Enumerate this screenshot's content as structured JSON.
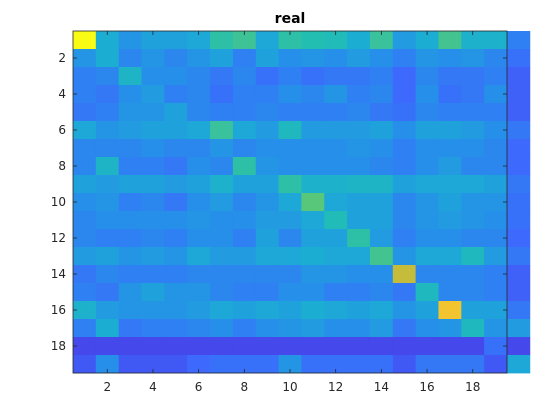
{
  "chart_data": {
    "type": "heatmap",
    "title": "real",
    "xlabel": "",
    "ylabel": "",
    "x_ticks": [
      2,
      4,
      6,
      8,
      10,
      12,
      14,
      16,
      18
    ],
    "y_ticks": [
      2,
      4,
      6,
      8,
      10,
      12,
      14,
      16,
      18
    ],
    "x_range": [
      0.5,
      19.5
    ],
    "y_range": [
      0.5,
      19.5
    ],
    "y_direction": "top-to-bottom",
    "colormap": "parula",
    "color_range": [
      0,
      10
    ],
    "grid": false,
    "legend": "none",
    "values": [
      [
        10,
        4.0,
        3.2,
        3.6,
        3.6,
        3.8,
        5.2,
        5.5,
        3.8,
        5.2,
        5.0,
        4.8,
        4.0,
        5.4,
        3.4,
        4.0,
        5.6,
        4.2,
        4.2,
        2.6
      ],
      [
        3.2,
        4.0,
        2.8,
        3.2,
        2.8,
        3.2,
        3.6,
        2.6,
        3.6,
        3.0,
        3.2,
        3.0,
        3.4,
        3.0,
        2.6,
        3.2,
        3.0,
        3.2,
        2.8,
        2.2
      ],
      [
        2.6,
        2.8,
        4.4,
        3.0,
        3.0,
        2.8,
        2.4,
        2.8,
        2.2,
        2.6,
        2.2,
        2.4,
        2.4,
        2.6,
        2.0,
        2.8,
        2.4,
        2.4,
        2.6,
        1.8
      ],
      [
        2.6,
        2.4,
        3.0,
        3.4,
        2.6,
        2.8,
        2.2,
        2.6,
        2.6,
        3.0,
        2.8,
        3.2,
        2.6,
        2.8,
        2.0,
        3.0,
        2.2,
        2.4,
        3.0,
        1.8
      ],
      [
        2.4,
        2.6,
        3.2,
        3.2,
        3.6,
        2.8,
        2.6,
        2.6,
        2.8,
        2.6,
        2.6,
        2.6,
        2.8,
        2.4,
        2.2,
        2.8,
        2.6,
        2.6,
        2.6,
        1.8
      ],
      [
        3.8,
        3.2,
        3.4,
        3.6,
        3.6,
        3.8,
        5.4,
        3.8,
        3.4,
        4.6,
        3.4,
        3.4,
        3.4,
        3.6,
        3.0,
        3.6,
        3.6,
        3.4,
        3.0,
        2.4
      ],
      [
        2.8,
        2.8,
        2.8,
        3.0,
        2.8,
        2.8,
        3.2,
        2.8,
        3.0,
        3.0,
        3.0,
        3.0,
        3.2,
        3.0,
        2.6,
        3.0,
        3.0,
        3.0,
        2.8,
        2.0
      ],
      [
        2.8,
        4.4,
        2.6,
        2.6,
        2.4,
        3.0,
        2.8,
        5.2,
        3.2,
        3.0,
        3.0,
        3.0,
        3.0,
        2.8,
        2.6,
        3.0,
        3.4,
        2.8,
        2.8,
        2.0
      ],
      [
        3.6,
        3.4,
        3.6,
        3.6,
        3.4,
        3.6,
        4.2,
        3.6,
        3.6,
        5.2,
        4.2,
        4.2,
        4.4,
        4.4,
        3.6,
        3.8,
        3.8,
        3.8,
        3.6,
        2.4
      ],
      [
        3.0,
        3.2,
        2.6,
        2.8,
        2.4,
        3.0,
        3.4,
        2.8,
        3.2,
        3.8,
        6.0,
        3.8,
        3.6,
        3.6,
        2.8,
        3.2,
        3.6,
        3.2,
        3.2,
        2.2
      ],
      [
        2.8,
        3.0,
        3.0,
        3.0,
        3.0,
        3.2,
        3.0,
        3.0,
        3.4,
        3.4,
        3.8,
        4.8,
        3.6,
        3.6,
        2.8,
        3.2,
        3.4,
        3.2,
        3.0,
        2.2
      ],
      [
        2.8,
        2.6,
        2.6,
        2.8,
        2.6,
        3.0,
        3.0,
        2.6,
        3.6,
        2.8,
        3.6,
        3.6,
        5.2,
        3.4,
        2.6,
        3.0,
        3.0,
        2.8,
        2.8,
        2.0
      ],
      [
        3.4,
        3.6,
        3.2,
        3.4,
        3.2,
        3.8,
        3.4,
        3.4,
        3.8,
        3.8,
        4.0,
        3.8,
        3.8,
        5.6,
        3.2,
        3.8,
        3.8,
        4.6,
        3.4,
        2.4
      ],
      [
        2.4,
        2.8,
        2.6,
        2.6,
        2.6,
        2.8,
        2.8,
        2.8,
        2.8,
        2.8,
        3.2,
        3.2,
        3.0,
        3.0,
        7.5,
        2.8,
        2.8,
        2.8,
        2.6,
        1.8
      ],
      [
        2.6,
        2.4,
        3.2,
        3.6,
        3.2,
        3.2,
        2.8,
        2.6,
        2.6,
        3.0,
        3.0,
        2.6,
        2.6,
        2.8,
        2.4,
        4.6,
        2.8,
        2.8,
        2.6,
        1.8
      ],
      [
        4.2,
        3.4,
        3.2,
        3.2,
        3.2,
        3.4,
        3.8,
        3.6,
        3.8,
        3.6,
        4.0,
        3.8,
        3.6,
        3.8,
        3.2,
        3.6,
        8.6,
        3.6,
        3.6,
        2.4
      ],
      [
        2.6,
        4.0,
        2.4,
        2.6,
        2.6,
        2.8,
        3.0,
        2.6,
        3.0,
        3.2,
        3.4,
        3.0,
        3.0,
        3.4,
        2.4,
        3.0,
        3.2,
        4.6,
        3.2,
        3.4
      ],
      [
        1.2,
        1.2,
        1.2,
        1.2,
        1.2,
        1.2,
        1.2,
        1.2,
        1.2,
        1.2,
        1.2,
        1.2,
        1.2,
        1.2,
        1.2,
        1.2,
        1.2,
        1.2,
        2.2,
        1.2
      ],
      [
        1.6,
        3.0,
        1.6,
        1.6,
        1.6,
        2.0,
        2.2,
        2.2,
        2.2,
        3.2,
        2.2,
        2.2,
        2.2,
        2.2,
        1.6,
        2.4,
        2.4,
        2.4,
        1.6,
        3.8
      ]
    ]
  }
}
